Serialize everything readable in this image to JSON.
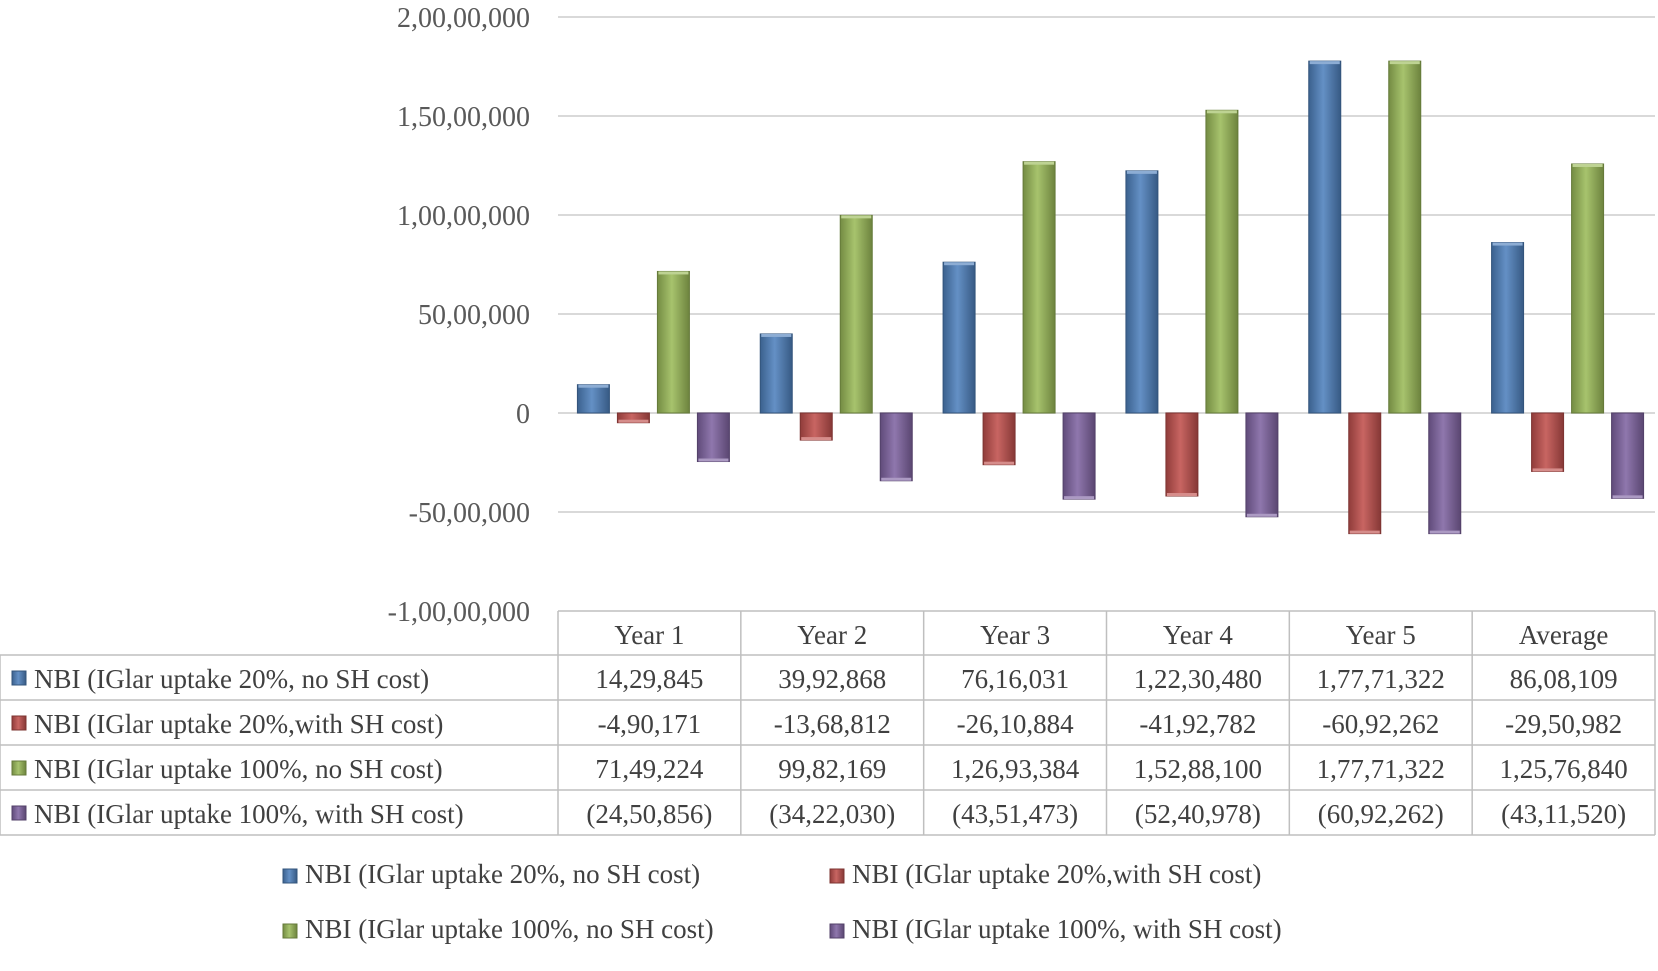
{
  "chart_data": {
    "type": "bar",
    "title": "",
    "xlabel": "",
    "ylabel": "",
    "ylim": [
      -10000000,
      20000000
    ],
    "y_ticks": [
      {
        "value": 20000000,
        "label": "2,00,00,000"
      },
      {
        "value": 15000000,
        "label": "1,50,00,000"
      },
      {
        "value": 10000000,
        "label": "1,00,00,000"
      },
      {
        "value": 5000000,
        "label": "50,00,000"
      },
      {
        "value": 0,
        "label": "0"
      },
      {
        "value": -5000000,
        "label": "-50,00,000"
      },
      {
        "value": -10000000,
        "label": "-1,00,00,000"
      }
    ],
    "grid": true,
    "legend_position": "bottom",
    "data_table": true,
    "categories": [
      "Year 1",
      "Year 2",
      "Year 3",
      "Year 4",
      "Year 5",
      "Average"
    ],
    "series": [
      {
        "name": "NBI (IGlar uptake 20%, no SH cost)",
        "color": "#4F81BD",
        "values": [
          1429845,
          3992868,
          7616031,
          12230480,
          17771322,
          8608109
        ],
        "labels": [
          "14,29,845",
          "39,92,868",
          "76,16,031",
          "1,22,30,480",
          "1,77,71,322",
          "86,08,109"
        ]
      },
      {
        "name": "NBI (IGlar uptake 20%,with SH cost)",
        "color": "#C0504D",
        "values": [
          -490171,
          -1368812,
          -2610884,
          -4192782,
          -6092262,
          -2950982
        ],
        "labels": [
          "-4,90,171",
          "-13,68,812",
          "-26,10,884",
          "-41,92,782",
          "-60,92,262",
          "-29,50,982"
        ]
      },
      {
        "name": "NBI (IGlar uptake 100%, no SH cost)",
        "color": "#9BBB59",
        "values": [
          7149224,
          9982169,
          12693384,
          15288100,
          17771322,
          12576840
        ],
        "labels": [
          "71,49,224",
          "99,82,169",
          "1,26,93,384",
          "1,52,88,100",
          "1,77,71,322",
          "1,25,76,840"
        ]
      },
      {
        "name": "NBI (IGlar uptake 100%, with SH cost)",
        "color": "#8064A2",
        "values": [
          -2450856,
          -3422030,
          -4351473,
          -5240978,
          -6092262,
          -4311520
        ],
        "labels": [
          "(24,50,856)",
          "(34,22,030)",
          "(43,51,473)",
          "(52,40,978)",
          "(60,92,262)",
          "(43,11,520)"
        ]
      }
    ]
  }
}
